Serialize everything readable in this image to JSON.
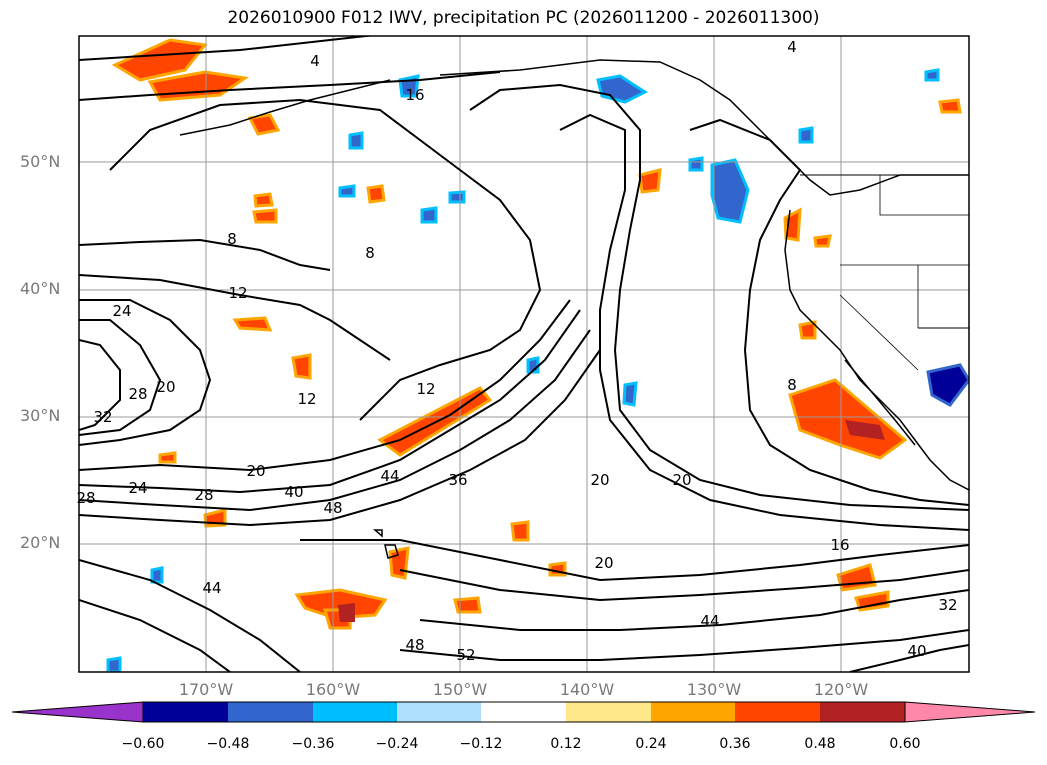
{
  "title": "2026010900 F012 IWV, precipitation PC (2026011200 - 2026011300)",
  "map": {
    "lon_range": [
      -180,
      -110
    ],
    "lat_range": [
      10,
      60
    ],
    "lat_ticks": [
      {
        "value": 20,
        "label": "20°N"
      },
      {
        "value": 30,
        "label": "30°N"
      },
      {
        "value": 40,
        "label": "40°N"
      },
      {
        "value": 50,
        "label": "50°N"
      }
    ],
    "lon_ticks": [
      {
        "value": -170,
        "label": "170°W"
      },
      {
        "value": -160,
        "label": "160°W"
      },
      {
        "value": -150,
        "label": "150°W"
      },
      {
        "value": -140,
        "label": "140°W"
      },
      {
        "value": -130,
        "label": "130°W"
      },
      {
        "value": -120,
        "label": "120°W"
      }
    ],
    "grid": true,
    "contour_labels": [
      "4",
      "16",
      "4",
      "8",
      "8",
      "12",
      "24",
      "32",
      "28",
      "20",
      "12",
      "12",
      "20",
      "24",
      "28",
      "40",
      "44",
      "48",
      "36",
      "20",
      "20",
      "16",
      "20",
      "44",
      "48",
      "52",
      "44",
      "40",
      "32",
      "28",
      "8"
    ]
  },
  "colorbar": {
    "tick_labels": [
      "−0.60",
      "−0.48",
      "−0.36",
      "−0.24",
      "−0.12",
      "0.12",
      "0.24",
      "0.36",
      "0.48",
      "0.60"
    ],
    "colors": [
      "#9933cc",
      "#000099",
      "#3366cc",
      "#00bfff",
      "#b0e0ff",
      "#ffffff",
      "#ffe88a",
      "#ffa500",
      "#ff4500",
      "#b22222",
      "#ff88aa"
    ]
  }
}
